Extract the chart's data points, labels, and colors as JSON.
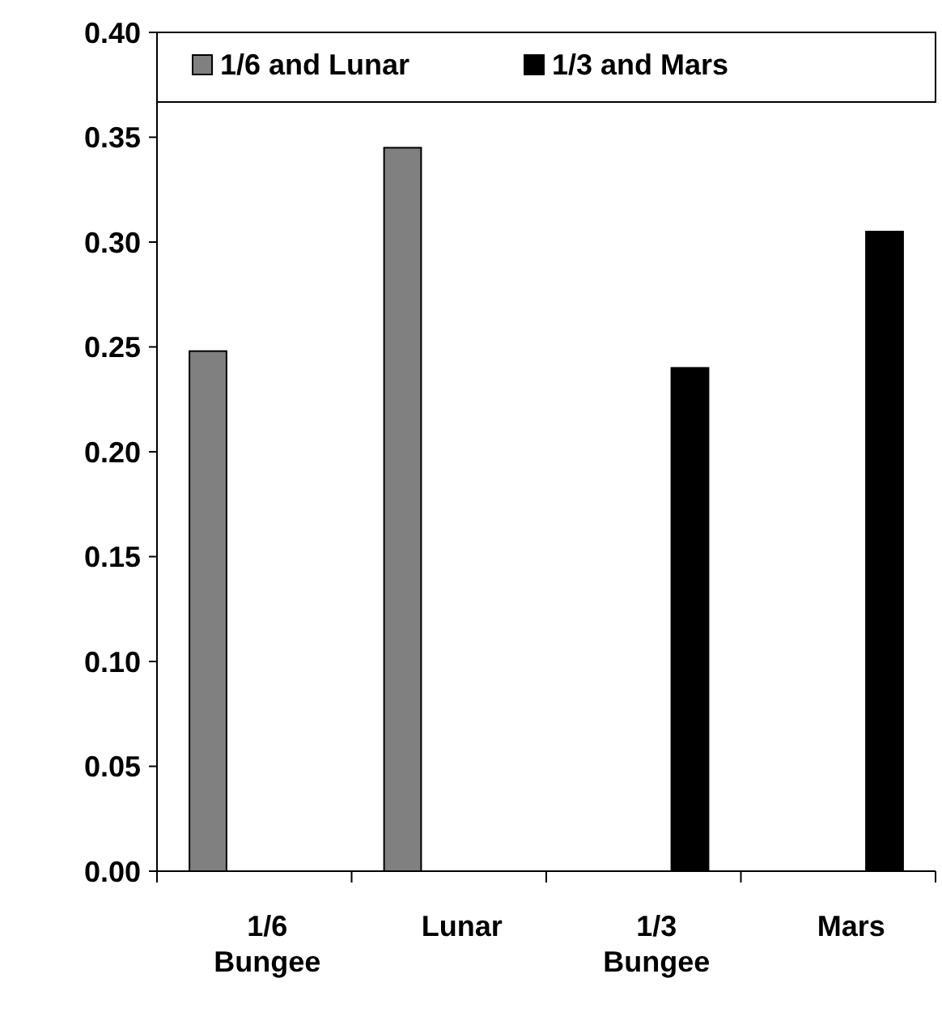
{
  "chart_data": {
    "type": "bar",
    "categories": [
      "1/6 Bungee",
      "Lunar",
      "1/3 Bungee",
      "Mars"
    ],
    "series": [
      {
        "name": "1/6 and Lunar",
        "color": "#808080",
        "values": [
          0.248,
          0.345,
          null,
          null
        ]
      },
      {
        "name": "1/3 and Mars",
        "color": "#000000",
        "values": [
          null,
          null,
          0.24,
          0.305
        ]
      }
    ],
    "ylim": [
      0,
      0.4
    ],
    "yticks": [
      {
        "value": 0,
        "label": "0.00"
      },
      {
        "value": 0.05,
        "label": "0.05"
      },
      {
        "value": 0.1,
        "label": "0.10"
      },
      {
        "value": 0.15,
        "label": "0.15"
      },
      {
        "value": 0.2,
        "label": "0.20"
      },
      {
        "value": 0.25,
        "label": "0.25"
      },
      {
        "value": 0.3,
        "label": "0.30"
      },
      {
        "value": 0.35,
        "label": "0.35"
      },
      {
        "value": 0.4,
        "label": "0.40"
      }
    ],
    "grid": false,
    "legend": "top"
  }
}
